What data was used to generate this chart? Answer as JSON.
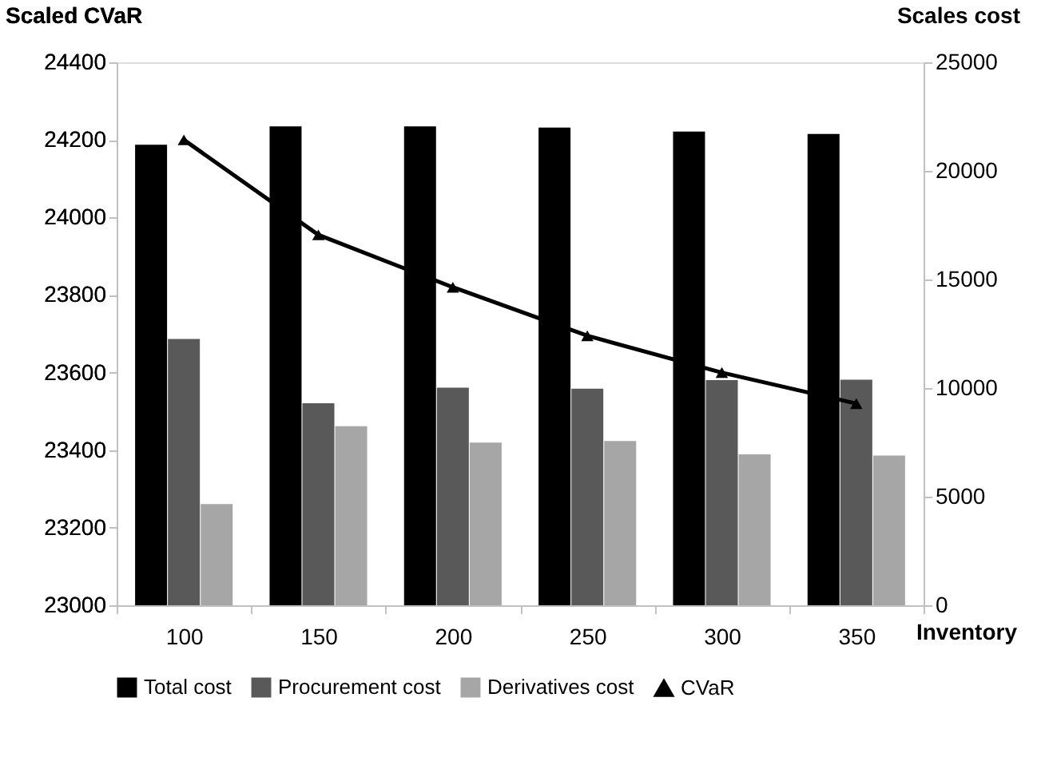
{
  "chart_data": {
    "type": "bar",
    "xlabel": "Inventory",
    "ylabel": "Scaled CVaR",
    "y2label": "Scales cost",
    "categories": [
      "100",
      "150",
      "200",
      "250",
      "300",
      "350"
    ],
    "series": [
      {
        "name": "Total cost",
        "color": "#000000",
        "axis": "y2",
        "values": [
          21200,
          22050,
          22050,
          21990,
          21810,
          21700
        ]
      },
      {
        "name": "Procurement cost",
        "color": "#595959",
        "axis": "y2",
        "values": [
          12260,
          9300,
          10020,
          9970,
          10370,
          10390
        ]
      },
      {
        "name": "Derivatives cost",
        "color": "#a6a6a6",
        "axis": "y2",
        "values": [
          4660,
          8240,
          7490,
          7560,
          6950,
          6890
        ]
      },
      {
        "name": "CVaR",
        "type": "line",
        "color": "#000000",
        "marker": "triangle",
        "values": [
          24200,
          23955,
          23820,
          23695,
          23600,
          23520
        ]
      }
    ],
    "ylim": [
      23000,
      24400
    ],
    "yticks": [
      23000,
      23200,
      23400,
      23600,
      23800,
      24000,
      24200,
      24400
    ],
    "y2lim": [
      0,
      25000
    ],
    "y2ticks": [
      0,
      5000,
      10000,
      15000,
      20000,
      25000
    ],
    "grid": false,
    "legend": "bottom"
  }
}
